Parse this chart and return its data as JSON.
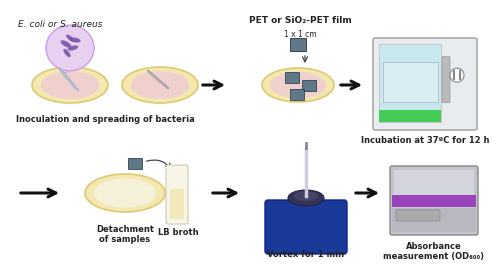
{
  "background_color": "#ffffff",
  "labels": {
    "ecoli_title": "E. coli or S. aureus",
    "inoculation": "Inoculation and spreading of bacteria",
    "pet_film": "PET or SiO₂-PET film",
    "size": "1 x 1 cm",
    "incubation": "Incubation at 37ºC for 12 h",
    "detachment": "Detachment\nof samples",
    "lb_broth": "LB broth",
    "vortex": "Vortex for 1 min",
    "absorbance": "Absorbance\nmeasurement (OD₆₀₀)"
  },
  "arrow_color": "#111111",
  "plate_outer": "#f2e8b0",
  "plate_rim": "#e0c870",
  "plate_inner": "#f0d0cc",
  "bacteria_color": "#7755aa",
  "bubble_color": "#e8d0f0",
  "bubble_edge": "#cc99ee",
  "swab_color": "#aabbcc",
  "pet_color": "#607888",
  "inc_body": "#e8ecee",
  "inc_door": "#c8e8f0",
  "inc_handle": "#aaaaaa",
  "inc_green": "#44cc55",
  "inc_outlet": "#888888",
  "tube_body": "#f8f4e8",
  "tube_liquid": "#f0e8b8",
  "vortex_body": "#1a3a99",
  "vortex_cup": "#2a2a44",
  "reader_body": "#c4c4cc",
  "reader_purple": "#9944bb",
  "reader_tray": "#aaaaaa"
}
